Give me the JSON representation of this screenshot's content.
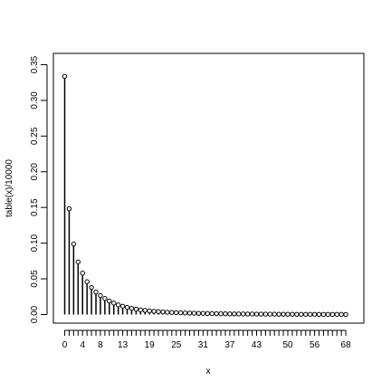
{
  "chart_data": {
    "type": "stem",
    "title": "",
    "xlabel": "x",
    "ylabel": "table(x)/10000",
    "ylim": [
      0,
      0.35
    ],
    "y_ticks": [
      0.0,
      0.05,
      0.1,
      0.15,
      0.2,
      0.25,
      0.3,
      0.35
    ],
    "y_tick_labels": [
      "0.00",
      "0.05",
      "0.10",
      "0.15",
      "0.20",
      "0.25",
      "0.30",
      "0.35"
    ],
    "x_tick_labels": [
      "0",
      "4",
      "8",
      "13",
      "19",
      "25",
      "31",
      "37",
      "43",
      "50",
      "56",
      "68"
    ],
    "categories": [
      "0",
      "1",
      "2",
      "3",
      "4",
      "5",
      "6",
      "7",
      "8",
      "9",
      "10",
      "11",
      "12",
      "13",
      "14",
      "15",
      "16",
      "17",
      "18",
      "19",
      "20",
      "21",
      "22",
      "23",
      "24",
      "25",
      "26",
      "27",
      "28",
      "29",
      "30",
      "31",
      "32",
      "33",
      "34",
      "35",
      "36",
      "37",
      "38",
      "39",
      "40",
      "41",
      "42",
      "43",
      "44",
      "45",
      "46",
      "47",
      "48",
      "49",
      "50",
      "51",
      "52",
      "53",
      "54",
      "55",
      "56",
      "57",
      "58",
      "59",
      "60",
      "61",
      "62",
      "68"
    ],
    "values": [
      0.3337,
      0.1481,
      0.0987,
      0.0737,
      0.058,
      0.046,
      0.038,
      0.0315,
      0.0265,
      0.0225,
      0.019,
      0.016,
      0.0135,
      0.0117,
      0.01,
      0.0087,
      0.0075,
      0.0065,
      0.0058,
      0.0051,
      0.0045,
      0.004,
      0.0036,
      0.0032,
      0.0029,
      0.0026,
      0.0024,
      0.0022,
      0.002,
      0.0018,
      0.0017,
      0.0016,
      0.0014,
      0.0013,
      0.0012,
      0.0011,
      0.001,
      0.0009,
      0.0009,
      0.0008,
      0.0008,
      0.0007,
      0.0007,
      0.0006,
      0.0006,
      0.0005,
      0.0005,
      0.0005,
      0.0004,
      0.0004,
      0.0004,
      0.0004,
      0.0003,
      0.0003,
      0.0003,
      0.0003,
      0.0003,
      0.0002,
      0.0002,
      0.0002,
      0.0002,
      0.0002,
      0.0002,
      0.0001
    ],
    "grid": false,
    "marker": "open-circle"
  }
}
